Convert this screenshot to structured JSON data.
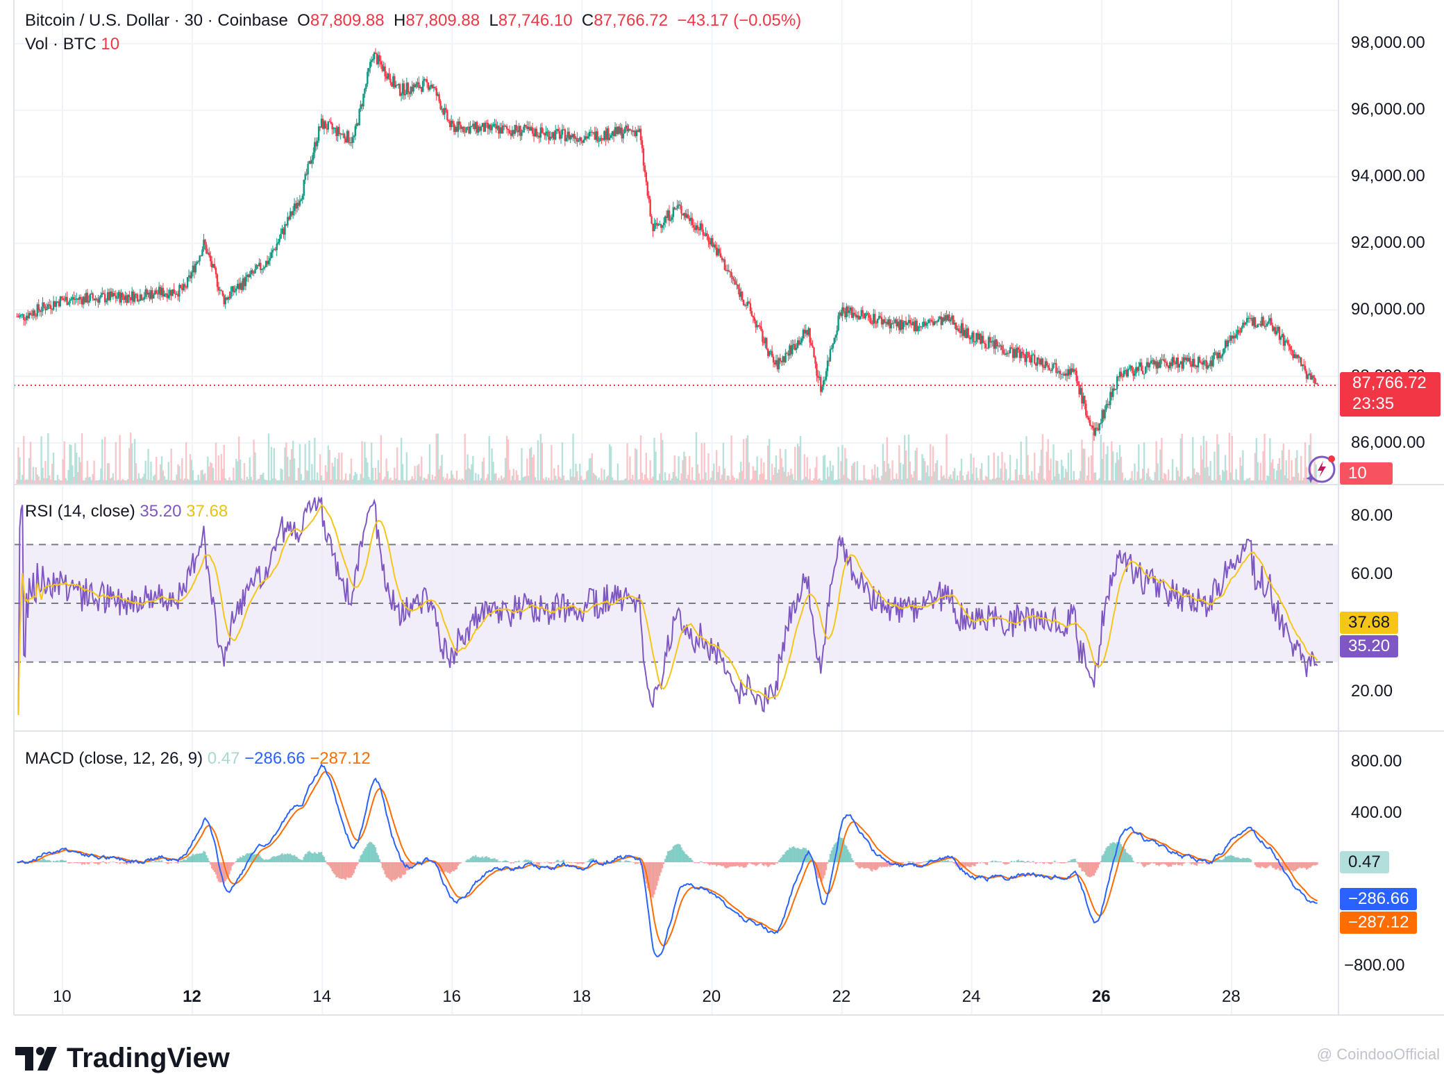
{
  "header": {
    "symbol": "Bitcoin / U.S. Dollar · 30 · Coinbase",
    "open_label": "O",
    "open": "87,809.88",
    "high_label": "H",
    "high": "87,809.88",
    "low_label": "L",
    "low": "87,746.10",
    "close_label": "C",
    "close": "87,766.72",
    "change": "−43.17 (−0.05%)",
    "vol_label": "Vol · BTC",
    "vol_value": "10"
  },
  "price_badge": {
    "value": "87,766.72",
    "countdown": "23:35"
  },
  "volume_badge": "10",
  "rsi": {
    "label": "RSI (14, close)",
    "value": "35.20",
    "ma": "37.68"
  },
  "macd": {
    "label": "MACD (close, 12, 26, 9)",
    "hist": "0.47",
    "macd": "−286.66",
    "signal": "−287.12"
  },
  "price_axis": [
    "98,000.00",
    "96,000.00",
    "94,000.00",
    "92,000.00",
    "90,000.00",
    "88,000.00",
    "86,000.00"
  ],
  "rsi_axis": [
    "80.00",
    "60.00",
    "20.00"
  ],
  "macd_axis": [
    "800.00",
    "400.00",
    "−800.00"
  ],
  "x_axis": [
    {
      "label": "10",
      "bold": false
    },
    {
      "label": "12",
      "bold": true
    },
    {
      "label": "14",
      "bold": false
    },
    {
      "label": "16",
      "bold": false
    },
    {
      "label": "18",
      "bold": false
    },
    {
      "label": "20",
      "bold": false
    },
    {
      "label": "22",
      "bold": false
    },
    {
      "label": "24",
      "bold": false
    },
    {
      "label": "26",
      "bold": true
    },
    {
      "label": "28",
      "bold": false
    }
  ],
  "brand": "TradingView",
  "watermark": "@ CoindooOfficial",
  "colors": {
    "up": "#089981",
    "down": "#f23645",
    "rsi": "#7e57c2",
    "rsi_ma": "#f5c518",
    "macd": "#2962ff",
    "signal": "#ff6d00"
  },
  "chart_data": [
    {
      "type": "candlestick",
      "title": "Bitcoin / U.S. Dollar · 30 · Coinbase",
      "x_labels": [
        "10",
        "12",
        "14",
        "16",
        "18",
        "20",
        "22",
        "24",
        "26",
        "28"
      ],
      "ylim": [
        85000,
        98600
      ],
      "approx_close_path": [
        {
          "x": "9.4",
          "y": 89800
        },
        {
          "x": "10",
          "y": 90300
        },
        {
          "x": "11",
          "y": 90400
        },
        {
          "x": "11.9",
          "y": 90600
        },
        {
          "x": "12.2",
          "y": 92000
        },
        {
          "x": "12.5",
          "y": 90300
        },
        {
          "x": "13.2",
          "y": 91500
        },
        {
          "x": "13.7",
          "y": 93500
        },
        {
          "x": "14.0",
          "y": 95600
        },
        {
          "x": "14.5",
          "y": 95100
        },
        {
          "x": "14.8",
          "y": 97700
        },
        {
          "x": "15.2",
          "y": 96600
        },
        {
          "x": "15.7",
          "y": 96800
        },
        {
          "x": "16.0",
          "y": 95500
        },
        {
          "x": "17.0",
          "y": 95400
        },
        {
          "x": "18.0",
          "y": 95200
        },
        {
          "x": "18.9",
          "y": 95400
        },
        {
          "x": "19.1",
          "y": 92400
        },
        {
          "x": "19.5",
          "y": 93100
        },
        {
          "x": "20.0",
          "y": 92100
        },
        {
          "x": "20.6",
          "y": 90000
        },
        {
          "x": "21.0",
          "y": 88300
        },
        {
          "x": "21.5",
          "y": 89400
        },
        {
          "x": "21.7",
          "y": 87600
        },
        {
          "x": "22.0",
          "y": 90000
        },
        {
          "x": "23.0",
          "y": 89500
        },
        {
          "x": "23.7",
          "y": 89700
        },
        {
          "x": "24.0",
          "y": 89200
        },
        {
          "x": "25.0",
          "y": 88500
        },
        {
          "x": "25.6",
          "y": 88100
        },
        {
          "x": "25.9",
          "y": 86200
        },
        {
          "x": "26.3",
          "y": 88100
        },
        {
          "x": "27.0",
          "y": 88400
        },
        {
          "x": "27.7",
          "y": 88400
        },
        {
          "x": "28.2",
          "y": 89600
        },
        {
          "x": "28.6",
          "y": 89700
        },
        {
          "x": "29.0",
          "y": 88600
        },
        {
          "x": "29.3",
          "y": 87767
        }
      ],
      "current_price": 87766.72
    },
    {
      "type": "line",
      "title": "RSI (14, close)",
      "ylim": [
        10,
        90
      ],
      "bands": {
        "upper": 70,
        "middle": 50,
        "lower": 30
      },
      "last": {
        "RSI": 35.2,
        "MA": 37.68
      }
    },
    {
      "type": "line",
      "title": "MACD (close, 12, 26, 9)",
      "ylim": [
        -1000,
        950
      ],
      "last": {
        "Histogram": 0.47,
        "MACD": -286.66,
        "Signal": -287.12
      }
    }
  ]
}
